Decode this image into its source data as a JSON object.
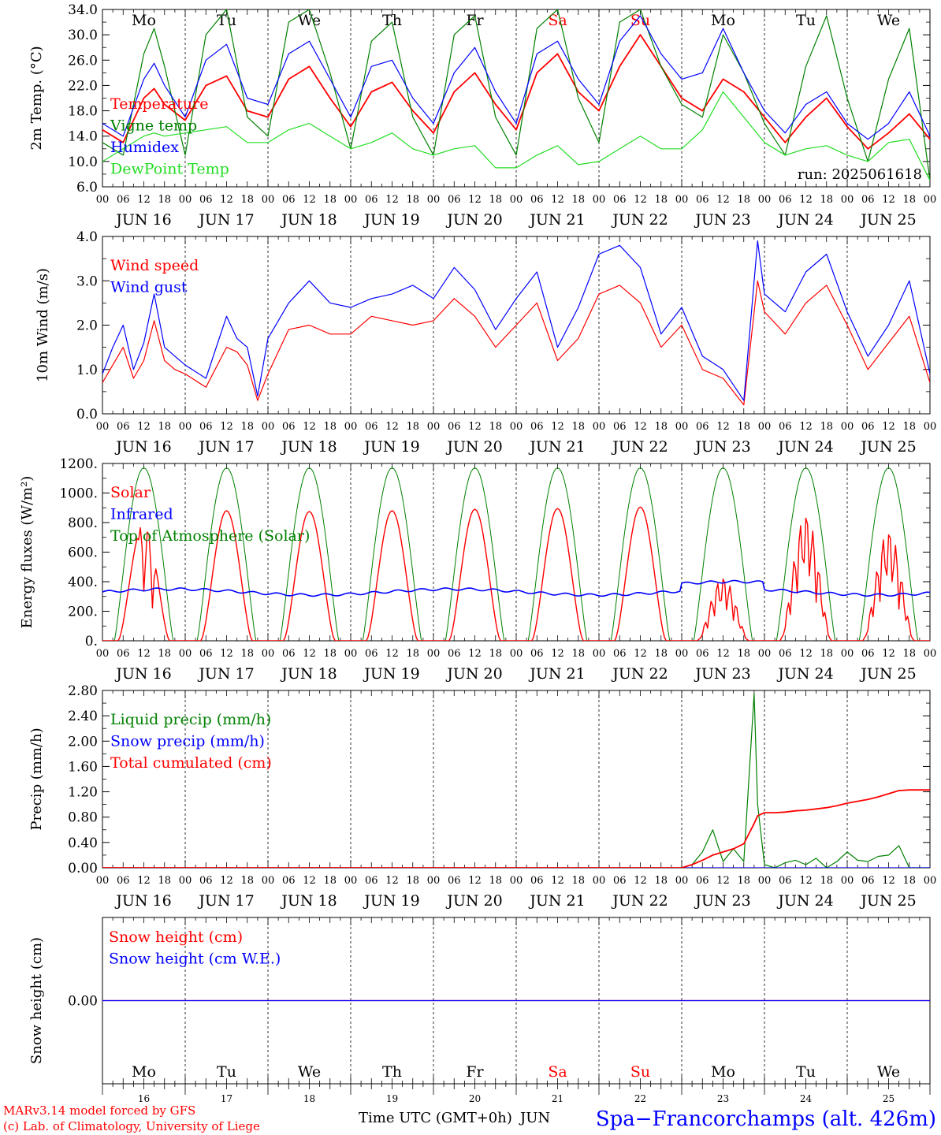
{
  "colors": {
    "red": "#ff0000",
    "green": "#008000",
    "blue": "#0000ff",
    "lightgreen": "#22dd22",
    "black": "#000000"
  },
  "footer": {
    "model": "MARv3.14 model forced by GFS",
    "lab": "(c) Lab. of Climatology, University of Liege",
    "axis_title": "Time UTC (GMT+0h)",
    "month": "JUN",
    "station": "Spa−Francorchamps (alt. 426m)",
    "day_numbers": [
      "16",
      "17",
      "18",
      "19",
      "20",
      "21",
      "22",
      "23",
      "24",
      "25"
    ]
  },
  "days": {
    "dates": [
      "JUN 16",
      "JUN 17",
      "JUN 18",
      "JUN 19",
      "JUN 20",
      "JUN 21",
      "JUN 22",
      "JUN 23",
      "JUN 24",
      "JUN 25"
    ],
    "weekdays": [
      "Mo",
      "Tu",
      "We",
      "Th",
      "Fr",
      "Sa",
      "Su",
      "Mo",
      "Tu",
      "We"
    ],
    "weekend_flags": [
      false,
      false,
      false,
      false,
      false,
      true,
      true,
      false,
      false,
      false
    ],
    "hour_labels": [
      "00",
      "06",
      "12",
      "18"
    ],
    "final_hour_label": "00"
  },
  "chart_data": [
    {
      "type": "line",
      "ylabel": "2m Temp. (°C)",
      "ylim": [
        6.0,
        34.0
      ],
      "yticks": [
        "6.0",
        "10.0",
        "14.0",
        "18.0",
        "22.0",
        "26.0",
        "30.0",
        "34.0"
      ],
      "annotation": "run: 2025061618",
      "x_unit": "hours since Jun 16 00 UTC",
      "x": [
        0,
        6,
        12,
        15,
        18,
        24,
        30,
        36,
        42,
        48,
        54,
        60,
        66,
        72,
        78,
        84,
        90,
        96,
        102,
        108,
        114,
        120,
        126,
        132,
        138,
        144,
        150,
        156,
        162,
        168,
        174,
        180,
        186,
        192,
        198,
        204,
        210,
        216,
        222,
        228,
        234,
        240
      ],
      "series": [
        {
          "name": "Temperature",
          "color": "red",
          "values": [
            15,
            13,
            20,
            21.5,
            19,
            16.5,
            22,
            23.5,
            18,
            17,
            23,
            25,
            20,
            15.5,
            21,
            22.5,
            18,
            14.5,
            21,
            24,
            19,
            15,
            24,
            27,
            21,
            18,
            25,
            30,
            25,
            20,
            18,
            23,
            21,
            17,
            13,
            17,
            20,
            15.5,
            12,
            14.5,
            17.5,
            13.5
          ]
        },
        {
          "name": "Vigne temp",
          "color": "green",
          "values": [
            13,
            11,
            27,
            31,
            25,
            11,
            30,
            34,
            17,
            14,
            32,
            34,
            24,
            12,
            29,
            32,
            17,
            11,
            30,
            33,
            17,
            11,
            31,
            34,
            20,
            13,
            32,
            34,
            25,
            19,
            17,
            30,
            24,
            16,
            11,
            25,
            33,
            20,
            10,
            23,
            31,
            7
          ]
        },
        {
          "name": "Humidex",
          "color": "blue",
          "values": [
            16,
            14,
            23,
            25.5,
            22,
            17,
            26,
            28.5,
            20,
            19,
            27,
            29,
            23,
            17,
            25,
            26,
            20,
            16,
            24,
            28,
            21,
            16,
            27,
            29,
            23,
            19,
            29,
            33,
            27,
            23,
            24,
            31,
            24,
            18,
            14.5,
            19,
            21,
            16,
            13.5,
            16,
            21,
            14
          ]
        },
        {
          "name": "DewPoint Temp",
          "color": "lightgreen",
          "values": [
            10,
            12,
            14,
            14.5,
            14,
            14.5,
            15,
            15.5,
            13,
            13,
            15,
            16,
            14,
            12,
            13,
            14.5,
            12,
            11,
            12,
            12.5,
            9,
            9,
            11,
            12.5,
            9.5,
            10,
            12,
            14,
            12,
            12,
            15,
            21,
            17,
            13,
            11,
            12,
            12.5,
            11,
            10,
            13,
            13.5,
            7
          ]
        }
      ]
    },
    {
      "type": "line",
      "ylabel": "10m Wind (m/s)",
      "ylim": [
        0.0,
        4.0
      ],
      "yticks": [
        "0.0",
        "1.0",
        "2.0",
        "3.0",
        "4.0"
      ],
      "x_unit": "hours since Jun 16 00 UTC",
      "x": [
        0,
        3,
        6,
        9,
        12,
        15,
        18,
        21,
        24,
        30,
        36,
        39,
        42,
        45,
        48,
        54,
        60,
        66,
        72,
        78,
        84,
        90,
        96,
        102,
        108,
        114,
        120,
        126,
        132,
        138,
        144,
        150,
        156,
        162,
        168,
        174,
        180,
        186,
        190,
        192,
        198,
        204,
        210,
        216,
        222,
        228,
        234,
        240
      ],
      "series": [
        {
          "name": "Wind speed",
          "color": "red",
          "values": [
            0.7,
            1.1,
            1.5,
            0.8,
            1.2,
            2.1,
            1.2,
            1.0,
            0.9,
            0.6,
            1.5,
            1.4,
            1.1,
            0.3,
            0.9,
            1.9,
            2.0,
            1.8,
            1.8,
            2.2,
            2.1,
            2.0,
            2.1,
            2.6,
            2.2,
            1.5,
            2.0,
            2.5,
            1.2,
            1.7,
            2.7,
            2.9,
            2.5,
            1.5,
            2.0,
            1.0,
            0.8,
            0.2,
            3.0,
            2.3,
            1.8,
            2.5,
            2.9,
            2.0,
            1.0,
            1.6,
            2.2,
            0.7
          ]
        },
        {
          "name": "Wind gust",
          "color": "blue",
          "values": [
            0.9,
            1.5,
            2.0,
            1.0,
            1.6,
            2.7,
            1.5,
            1.3,
            1.1,
            0.8,
            2.2,
            1.7,
            1.5,
            0.4,
            1.7,
            2.5,
            3.0,
            2.5,
            2.4,
            2.6,
            2.7,
            2.9,
            2.6,
            3.3,
            2.8,
            1.9,
            2.6,
            3.2,
            1.5,
            2.4,
            3.6,
            3.8,
            3.3,
            1.8,
            2.4,
            1.3,
            1.0,
            0.3,
            3.9,
            2.7,
            2.3,
            3.2,
            3.6,
            2.3,
            1.3,
            2.0,
            3.0,
            0.9
          ]
        }
      ]
    },
    {
      "type": "line",
      "ylabel": "Energy fluxes (W/m²)",
      "ylim": [
        0,
        1200
      ],
      "yticks": [
        "0.",
        "200.",
        "400.",
        "600.",
        "800.",
        "1000.",
        "1200."
      ],
      "x_unit": "hours since Jun 16 00 UTC",
      "solar_daily_peaks": [
        800,
        880,
        875,
        880,
        890,
        895,
        905,
        430,
        860,
        750
      ],
      "toa_daily_peak": 1170,
      "infrared_mean": 330,
      "series": [
        {
          "name": "Solar",
          "color": "red"
        },
        {
          "name": "Infrared",
          "color": "blue"
        },
        {
          "name": "Top of Atmosphere (Solar)",
          "color": "green"
        }
      ]
    },
    {
      "type": "line",
      "ylabel": "Precip (mm/h)",
      "ylim": [
        0.0,
        2.8
      ],
      "yticks": [
        "0.00",
        "0.40",
        "0.80",
        "1.20",
        "1.60",
        "2.00",
        "2.40",
        "2.80"
      ],
      "x_unit": "hours since Jun 16 00 UTC",
      "x": [
        0,
        168,
        171,
        174,
        177,
        180,
        183,
        186,
        189,
        190,
        192,
        195,
        198,
        201,
        204,
        207,
        210,
        213,
        216,
        219,
        222,
        225,
        228,
        231,
        234,
        237,
        240
      ],
      "series": [
        {
          "name": "Liquid precip (mm/h)",
          "color": "green",
          "values": [
            0,
            0,
            0.05,
            0.25,
            0.6,
            0.1,
            0.3,
            0.1,
            2.75,
            1.0,
            0.05,
            0,
            0.08,
            0.12,
            0.05,
            0.15,
            0,
            0.1,
            0.25,
            0.12,
            0.1,
            0.18,
            0.2,
            0.35,
            0,
            0,
            0
          ]
        },
        {
          "name": "Snow precip (mm/h)",
          "color": "blue",
          "values": [
            0,
            0,
            0,
            0,
            0,
            0,
            0,
            0,
            0,
            0,
            0,
            0,
            0,
            0,
            0,
            0,
            0,
            0,
            0,
            0,
            0,
            0,
            0,
            0,
            0,
            0,
            0
          ]
        },
        {
          "name": "Total cumulated (cm)",
          "color": "red",
          "values": [
            0,
            0,
            0.05,
            0.12,
            0.2,
            0.25,
            0.3,
            0.38,
            0.7,
            0.82,
            0.87,
            0.87,
            0.88,
            0.9,
            0.91,
            0.93,
            0.95,
            0.98,
            1.02,
            1.05,
            1.08,
            1.12,
            1.17,
            1.22,
            1.23,
            1.23,
            1.23
          ]
        }
      ]
    },
    {
      "type": "line",
      "ylabel": "Snow height (cm)",
      "ylim": [
        -1,
        1
      ],
      "yticks": [
        "0.00"
      ],
      "x_unit": "hours since Jun 16 00 UTC",
      "x": [
        0,
        240
      ],
      "series": [
        {
          "name": "Snow height (cm)",
          "color": "red",
          "values": [
            0,
            0
          ]
        },
        {
          "name": "Snow height (cm W.E.)",
          "color": "blue",
          "values": [
            0,
            0
          ]
        }
      ]
    }
  ]
}
